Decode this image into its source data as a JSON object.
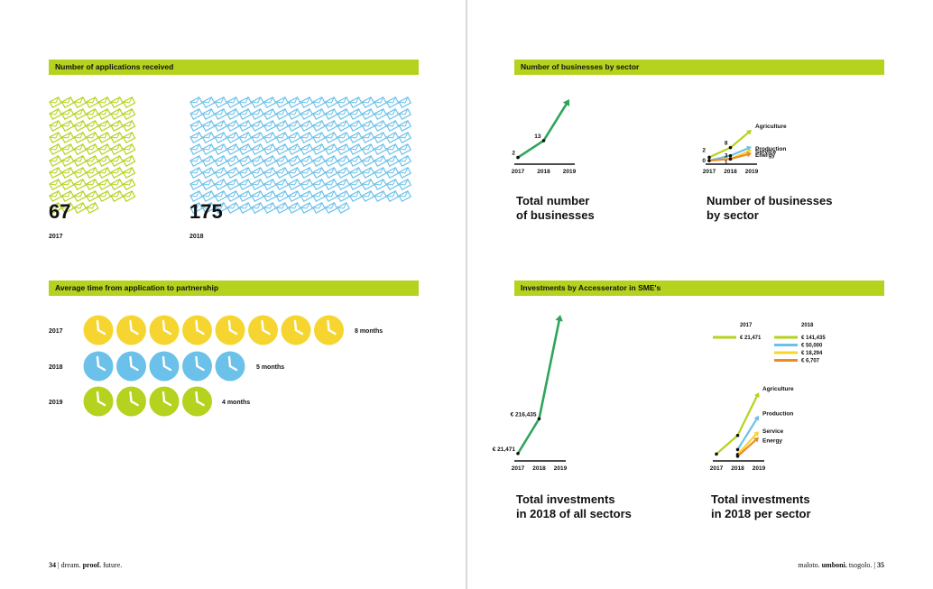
{
  "sections": {
    "applications": "Number of applications received",
    "businesses": "Number of businesses by sector",
    "avg_time": "Average time from application to partnership",
    "investments": "Investments by Accesserator in SME's"
  },
  "applications": {
    "items": [
      {
        "count": "67",
        "year": "2017",
        "color": "#b5d21e",
        "value": 67
      },
      {
        "count": "175",
        "year": "2018",
        "color": "#6cc1ea",
        "value": 175
      }
    ]
  },
  "avg_time": {
    "rows": [
      {
        "year": "2017",
        "months": 8,
        "label": "8 months",
        "color": "#f7d531"
      },
      {
        "year": "2018",
        "months": 5,
        "label": "5 months",
        "color": "#6cc1ea"
      },
      {
        "year": "2019",
        "months": 4,
        "label": "4 months",
        "color": "#b5d21e"
      }
    ]
  },
  "titles": {
    "total_businesses": "Total number\nof businesses",
    "businesses_by_sector": "Number of businesses\nby sector",
    "total_investments": "Total investments\nin 2018 of all sectors",
    "investments_per_sector": "Total investments\nin 2018 per sector"
  },
  "footer": {
    "left_page": "34",
    "left_a": "dream.",
    "left_b": "proof.",
    "left_c": "future.",
    "right_a": "maloto.",
    "right_b": "umboni.",
    "right_c": "tsogolo.",
    "right_page": "35"
  },
  "chart_data": [
    {
      "type": "line",
      "id": "total-businesses",
      "x": [
        "2017",
        "2018",
        "2019"
      ],
      "series": [
        {
          "values": [
            2,
            13,
            40
          ],
          "labels": [
            "2",
            "13",
            ""
          ],
          "color": "#2ea55a"
        }
      ],
      "ylim": [
        0,
        40
      ]
    },
    {
      "type": "line",
      "id": "businesses-by-sector",
      "x": [
        "2017",
        "2018",
        "2019"
      ],
      "start_labels": [
        "2",
        "0"
      ],
      "point_labels": [
        "8",
        "3",
        "1"
      ],
      "series": [
        {
          "name": "Agriculture",
          "values": [
            2,
            8,
            19
          ],
          "color": "#b5d21e"
        },
        {
          "name": "Production",
          "values": [
            0,
            3,
            8.5
          ],
          "color": "#6cc1ea"
        },
        {
          "name": "Service",
          "values": [
            0,
            1,
            6.5
          ],
          "color": "#f7d531"
        },
        {
          "name": "Energy",
          "values": [
            0,
            1,
            4.5
          ],
          "color": "#ee8a24"
        }
      ],
      "ylim": [
        0,
        19
      ]
    },
    {
      "type": "line",
      "id": "total-investments",
      "x": [
        "2017",
        "2018",
        "2019"
      ],
      "series": [
        {
          "values": [
            21471,
            216435,
            800000
          ],
          "labels": [
            "€ 21,471",
            "€ 216,435",
            ""
          ],
          "color": "#2ea55a"
        }
      ],
      "ylim": [
        0,
        800000
      ]
    },
    {
      "type": "line",
      "id": "investments-per-sector",
      "x": [
        "2017",
        "2018",
        "2019"
      ],
      "legend": {
        "year_a": "2017",
        "year_b": "2018",
        "entries_a": [
          {
            "label": "€ 21,471",
            "color": "#b5d21e"
          }
        ],
        "entries_b": [
          {
            "label": "€ 141,435",
            "color": "#b5d21e"
          },
          {
            "label": "€ 50,000",
            "color": "#6cc1ea"
          },
          {
            "label": "€ 18,294",
            "color": "#f7d531"
          },
          {
            "label": "€ 6,707",
            "color": "#ee8a24"
          }
        ]
      },
      "series": [
        {
          "name": "Agriculture",
          "values": [
            21471,
            141435,
            420000
          ],
          "color": "#b5d21e"
        },
        {
          "name": "Production",
          "values": [
            null,
            50000,
            270000
          ],
          "color": "#6cc1ea"
        },
        {
          "name": "Service",
          "values": [
            null,
            18294,
            168000
          ],
          "color": "#f7d531"
        },
        {
          "name": "Energy",
          "values": [
            null,
            6707,
            130000
          ],
          "color": "#ee8a24"
        }
      ],
      "ylim": [
        0,
        420000
      ]
    }
  ]
}
